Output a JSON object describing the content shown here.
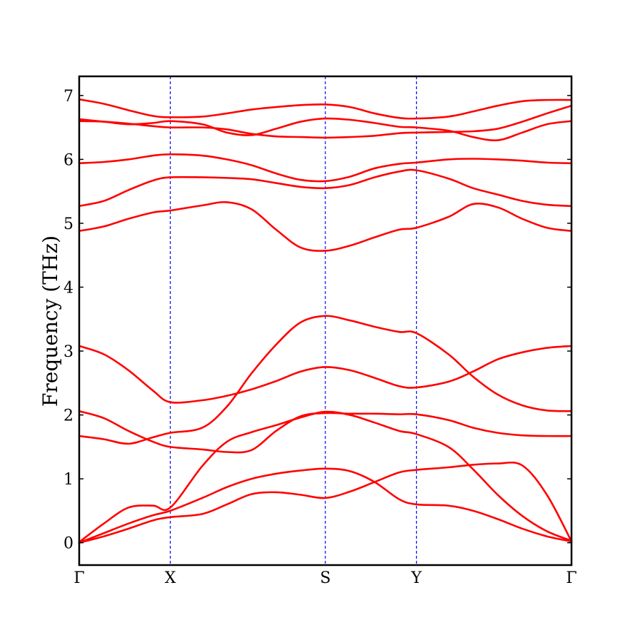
{
  "chart_data": {
    "type": "line",
    "title": "",
    "xlabel": "",
    "ylabel": "Frequency (THz)",
    "ylim": [
      -0.35,
      7.3
    ],
    "xlim": [
      0,
      1
    ],
    "x_ticks": [
      {
        "label": "Γ",
        "pos": 0.0
      },
      {
        "label": "X",
        "pos": 0.185
      },
      {
        "label": "S",
        "pos": 0.5
      },
      {
        "label": "Y",
        "pos": 0.685
      },
      {
        "label": "Γ",
        "pos": 1.0
      }
    ],
    "y_ticks": [
      0,
      1,
      2,
      3,
      4,
      5,
      6,
      7
    ],
    "grid": false,
    "legend": "none",
    "colors": {
      "bands": "#ff0000",
      "vlines": "#0000ff",
      "axes": "#000000"
    },
    "x": [
      0.0,
      0.05,
      0.1,
      0.15,
      0.185,
      0.25,
      0.3,
      0.35,
      0.4,
      0.45,
      0.5,
      0.55,
      0.6,
      0.65,
      0.685,
      0.75,
      0.8,
      0.85,
      0.9,
      0.95,
      1.0
    ],
    "series": [
      {
        "values": [
          0.0,
          0.1,
          0.22,
          0.35,
          0.4,
          0.45,
          0.6,
          0.76,
          0.79,
          0.75,
          0.7,
          0.8,
          0.95,
          1.1,
          1.14,
          1.18,
          1.22,
          1.24,
          1.21,
          0.75,
          0.02
        ]
      },
      {
        "values": [
          0.0,
          0.15,
          0.3,
          0.43,
          0.5,
          0.7,
          0.87,
          1.0,
          1.08,
          1.13,
          1.16,
          1.12,
          0.95,
          0.68,
          0.6,
          0.58,
          0.5,
          0.37,
          0.22,
          0.1,
          0.02
        ]
      },
      {
        "values": [
          0.01,
          0.3,
          0.55,
          0.58,
          0.55,
          1.2,
          1.58,
          1.73,
          1.84,
          1.96,
          2.05,
          2.0,
          1.88,
          1.75,
          1.7,
          1.5,
          1.15,
          0.75,
          0.42,
          0.18,
          0.03
        ]
      },
      {
        "values": [
          1.67,
          1.62,
          1.55,
          1.65,
          1.72,
          1.8,
          2.13,
          2.65,
          3.1,
          3.45,
          3.55,
          3.48,
          3.38,
          3.3,
          3.28,
          2.95,
          2.6,
          2.32,
          2.15,
          2.07,
          2.06
        ]
      },
      {
        "values": [
          2.06,
          1.95,
          1.75,
          1.58,
          1.5,
          1.46,
          1.42,
          1.45,
          1.75,
          1.98,
          2.03,
          2.02,
          2.02,
          2.01,
          2.01,
          1.92,
          1.8,
          1.72,
          1.68,
          1.67,
          1.67
        ]
      },
      {
        "values": [
          3.08,
          2.95,
          2.7,
          2.38,
          2.2,
          2.23,
          2.3,
          2.4,
          2.53,
          2.68,
          2.75,
          2.7,
          2.58,
          2.45,
          2.43,
          2.52,
          2.68,
          2.87,
          2.98,
          3.05,
          3.08
        ]
      },
      {
        "values": [
          4.88,
          4.95,
          5.07,
          5.17,
          5.2,
          5.28,
          5.33,
          5.22,
          4.9,
          4.62,
          4.57,
          4.65,
          4.78,
          4.9,
          4.93,
          5.1,
          5.3,
          5.25,
          5.07,
          4.93,
          4.88
        ]
      },
      {
        "values": [
          5.27,
          5.35,
          5.52,
          5.67,
          5.72,
          5.72,
          5.71,
          5.69,
          5.63,
          5.57,
          5.55,
          5.6,
          5.72,
          5.81,
          5.83,
          5.7,
          5.55,
          5.45,
          5.35,
          5.29,
          5.27
        ]
      },
      {
        "values": [
          5.94,
          5.96,
          6.0,
          6.06,
          6.08,
          6.06,
          6.0,
          5.91,
          5.78,
          5.68,
          5.66,
          5.73,
          5.86,
          5.93,
          5.95,
          6.0,
          6.01,
          6.0,
          5.98,
          5.95,
          5.94
        ]
      },
      {
        "values": [
          6.6,
          6.59,
          6.56,
          6.52,
          6.5,
          6.5,
          6.47,
          6.4,
          6.36,
          6.35,
          6.34,
          6.35,
          6.37,
          6.41,
          6.42,
          6.43,
          6.44,
          6.48,
          6.59,
          6.72,
          6.84
        ]
      },
      {
        "values": [
          6.63,
          6.59,
          6.55,
          6.57,
          6.6,
          6.55,
          6.42,
          6.38,
          6.48,
          6.59,
          6.64,
          6.62,
          6.57,
          6.51,
          6.5,
          6.45,
          6.35,
          6.3,
          6.42,
          6.55,
          6.6
        ]
      },
      {
        "values": [
          6.94,
          6.87,
          6.77,
          6.68,
          6.66,
          6.67,
          6.72,
          6.78,
          6.82,
          6.85,
          6.86,
          6.82,
          6.72,
          6.65,
          6.64,
          6.67,
          6.75,
          6.84,
          6.91,
          6.93,
          6.93
        ]
      }
    ]
  }
}
